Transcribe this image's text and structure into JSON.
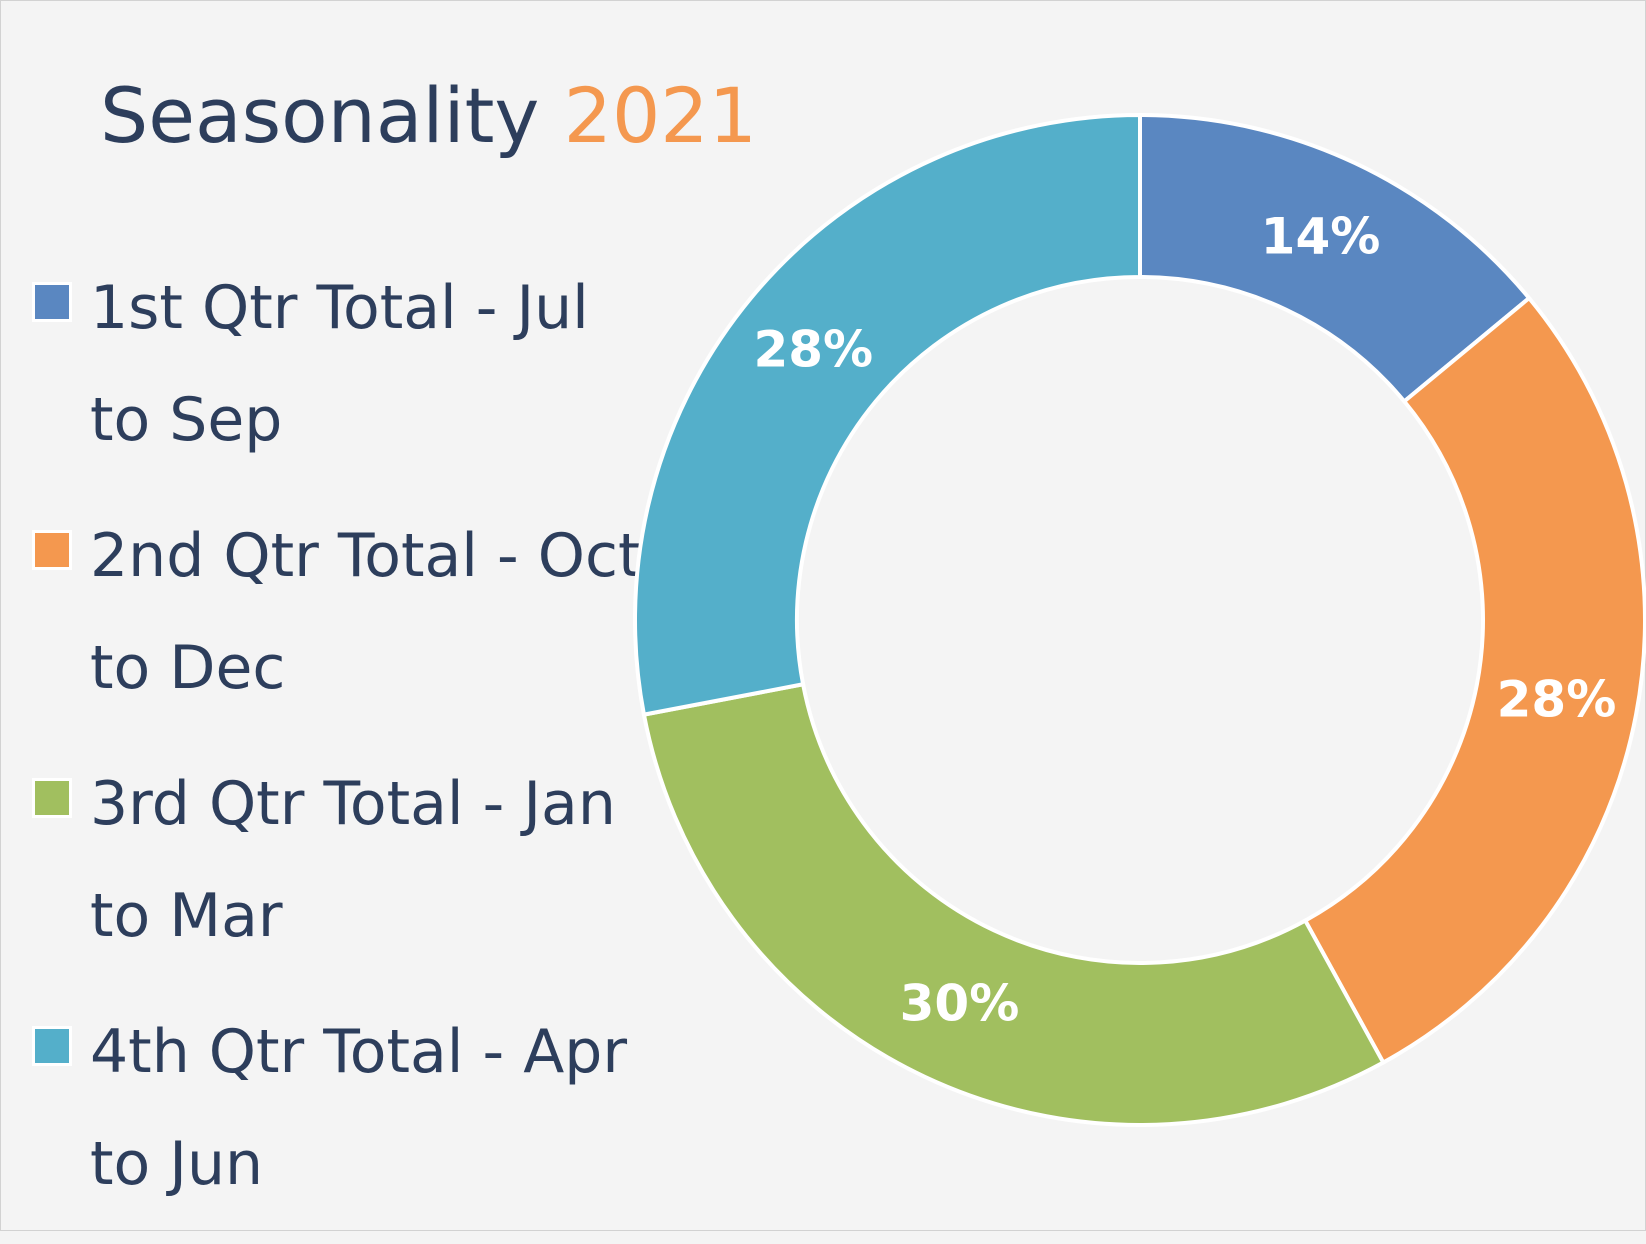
{
  "chart_data": {
    "type": "pie",
    "subtype": "doughnut",
    "title": "Seasonality",
    "title_highlight": "2021",
    "categories": [
      "1st Qtr Total - Jul to Sep",
      "2nd Qtr Total - Oct to Dec",
      "3rd Qtr Total - Jan to Mar",
      "4th Qtr Total - Apr to Jun"
    ],
    "values": [
      14,
      28,
      30,
      28
    ],
    "labels": [
      "14%",
      "28%",
      "30%",
      "28%"
    ],
    "colors": [
      "#5a87c1",
      "#f4984f",
      "#a1bf5f",
      "#54afca"
    ],
    "legend": "left"
  },
  "colors": {
    "background": "#f4f4f4",
    "text": "#2d3e5c",
    "accent": "#f4984f"
  }
}
